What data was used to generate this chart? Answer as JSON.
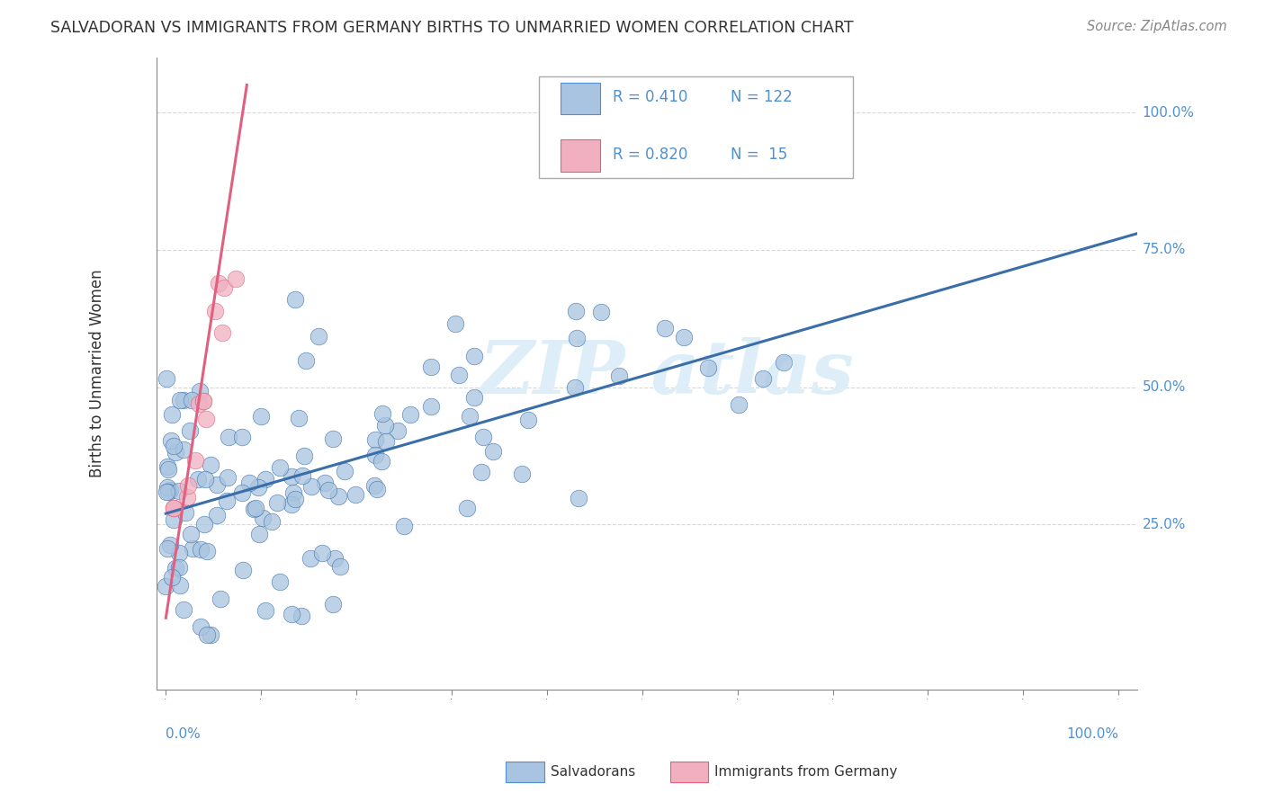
{
  "title": "SALVADORAN VS IMMIGRANTS FROM GERMANY BIRTHS TO UNMARRIED WOMEN CORRELATION CHART",
  "source": "Source: ZipAtlas.com",
  "ylabel": "Births to Unmarried Women",
  "blue_color": "#a8c4e0",
  "pink_color": "#f0b0c0",
  "trendline_blue": "#3a6ea8",
  "trendline_pink": "#e06080",
  "legend_blue_patch": "#a8c4e0",
  "legend_pink_patch": "#f0b0c0",
  "watermark_color": "#ddeef8",
  "grid_color": "#d8d8d8",
  "axis_label_color": "#5090d0",
  "title_color": "#333333",
  "source_color": "#888888",
  "ylabel_color": "#333333",
  "figsize": [
    14.06,
    8.92
  ],
  "dpi": 100,
  "blue_R": "0.410",
  "blue_N": "122",
  "pink_R": "0.820",
  "pink_N": "15",
  "x_min": 0.0,
  "x_max": 1.0,
  "y_min": -0.05,
  "y_max": 1.1,
  "blue_trend": [
    0.0,
    0.27,
    1.0,
    0.78
  ],
  "pink_trend": [
    0.0,
    0.08,
    0.085,
    1.05
  ]
}
